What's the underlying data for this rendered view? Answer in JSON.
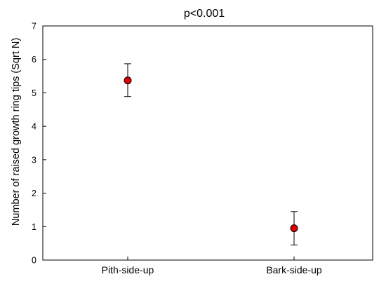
{
  "chart_data": {
    "type": "scatter",
    "title": "p<0.001",
    "xlabel": "",
    "ylabel": "Number of raised growth ring tips (Sqrt N)",
    "categories": [
      "Pith-side-up",
      "Bark-side-up"
    ],
    "values": [
      5.37,
      0.95
    ],
    "error_upper": [
      5.87,
      1.45
    ],
    "error_lower": [
      4.89,
      0.45
    ],
    "ylim": [
      0,
      7
    ],
    "yticks": [
      "0",
      "1",
      "2",
      "3",
      "4",
      "5",
      "6",
      "7"
    ],
    "grid": false,
    "marker_color": "#e00000"
  }
}
